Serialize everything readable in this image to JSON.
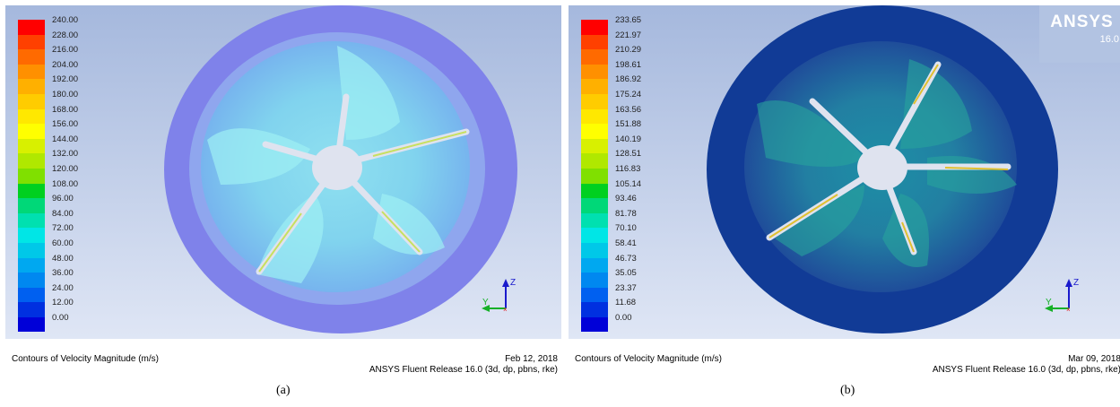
{
  "panels": [
    {
      "id": "a",
      "legend": [
        "240.00",
        "228.00",
        "216.00",
        "204.00",
        "192.00",
        "180.00",
        "168.00",
        "156.00",
        "144.00",
        "132.00",
        "120.00",
        "108.00",
        "96.00",
        "84.00",
        "72.00",
        "60.00",
        "48.00",
        "36.00",
        "24.00",
        "12.00",
        "0.00"
      ],
      "footer_title": "Contours of Velocity Magnitude (m/s)",
      "date": "Feb 12, 2018",
      "release": "ANSYS Fluent Release 16.0 (3d, dp, pbns, rke)",
      "caption": "(a)"
    },
    {
      "id": "b",
      "legend": [
        "233.65",
        "221.97",
        "210.29",
        "198.61",
        "186.92",
        "175.24",
        "163.56",
        "151.88",
        "140.19",
        "128.51",
        "116.83",
        "105.14",
        "93.46",
        "81.78",
        "70.10",
        "58.41",
        "46.73",
        "35.05",
        "23.37",
        "11.68",
        "0.00"
      ],
      "footer_title": "Contours of Velocity Magnitude (m/s)",
      "date": "Mar 09, 2018",
      "release": "ANSYS Fluent Release 16.0 (3d, dp, pbns, rke)",
      "caption": "(b)",
      "logo": {
        "brand": "ANSYS",
        "version": "16.0"
      }
    }
  ],
  "axes": {
    "z": "Z",
    "y": "Y"
  },
  "colormap": [
    "#ff0000",
    "#ff4000",
    "#ff6a00",
    "#ff9000",
    "#ffb000",
    "#ffcc00",
    "#ffe800",
    "#ffff00",
    "#d8f000",
    "#b0e800",
    "#80e000",
    "#00d020",
    "#00d878",
    "#00e0b0",
    "#00e6e6",
    "#00c8e8",
    "#00a8f0",
    "#0088f0",
    "#0060f0",
    "#0030e0",
    "#0000d8"
  ]
}
